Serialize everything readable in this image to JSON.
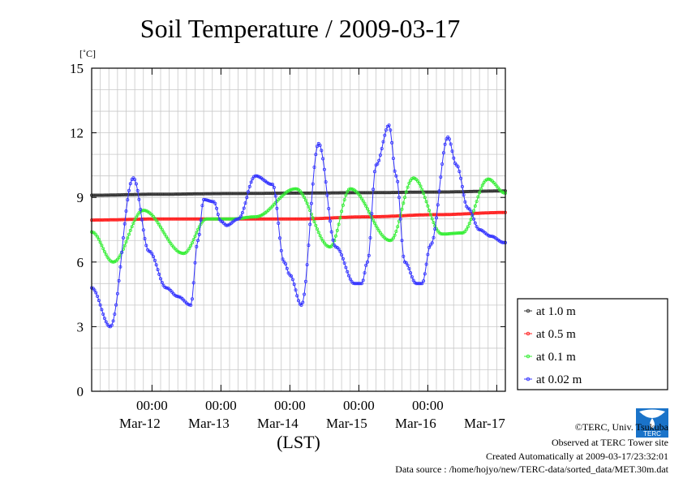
{
  "chart_data": {
    "type": "line",
    "title": "Soil Temperature / 2009-03-17",
    "ylabel": "[˚C]",
    "xlabel": "(LST)",
    "ylim": [
      0,
      15
    ],
    "yticks": [
      0,
      3,
      6,
      9,
      12,
      15
    ],
    "xlim_hours": [
      0,
      144
    ],
    "xticks": [
      {
        "hour": 21,
        "time": "00:00",
        "date": "Mar-12"
      },
      {
        "hour": 45,
        "time": "00:00",
        "date": "Mar-13"
      },
      {
        "hour": 69,
        "time": "00:00",
        "date": "Mar-14"
      },
      {
        "hour": 93,
        "time": "00:00",
        "date": "Mar-15"
      },
      {
        "hour": 117,
        "time": "00:00",
        "date": "Mar-16"
      },
      {
        "hour": 141,
        "time": "",
        "date": "Mar-17"
      }
    ],
    "grid": true,
    "legend_position": "right-bottom",
    "series": [
      {
        "name": "at 1.0 m",
        "color": "#333333",
        "x": [
          0,
          24,
          48,
          72,
          96,
          120,
          144
        ],
        "y": [
          9.1,
          9.15,
          9.18,
          9.2,
          9.22,
          9.25,
          9.3
        ]
      },
      {
        "name": "at 0.5 m",
        "color": "#ff2020",
        "x": [
          0,
          24,
          48,
          72,
          96,
          120,
          144
        ],
        "y": [
          7.95,
          8.0,
          8.0,
          8.0,
          8.1,
          8.2,
          8.3
        ]
      },
      {
        "name": "at 0.1 m",
        "color": "#33ee33",
        "x": [
          0,
          7.5,
          18,
          32,
          40,
          49,
          57,
          71,
          83,
          90,
          104,
          112,
          122,
          129,
          138,
          144
        ],
        "y": [
          7.4,
          6.0,
          8.4,
          6.4,
          8.0,
          8.0,
          8.1,
          9.4,
          6.7,
          9.4,
          7.0,
          9.9,
          7.3,
          7.35,
          9.85,
          9.2
        ]
      },
      {
        "name": "at 0.02 m",
        "color": "#3333ff",
        "x": [
          0,
          6.5,
          14.5,
          20,
          26,
          30,
          34.5,
          37,
          39,
          42.5,
          45,
          47,
          51,
          57,
          63,
          67,
          69,
          73,
          79,
          85,
          91.5,
          94,
          96,
          99,
          103.5,
          106,
          109,
          113,
          115,
          118,
          124,
          127,
          131,
          135,
          139,
          143.5
        ],
        "y": [
          4.8,
          3.0,
          9.9,
          6.5,
          4.8,
          4.4,
          4.0,
          7.0,
          8.9,
          8.8,
          7.9,
          7.7,
          8.0,
          10.0,
          9.6,
          6.0,
          5.4,
          4.0,
          11.5,
          6.7,
          5.0,
          5.0,
          6.0,
          10.5,
          12.35,
          10.0,
          6.0,
          5.0,
          5.0,
          6.8,
          11.8,
          10.5,
          8.5,
          7.5,
          7.2,
          6.9
        ]
      }
    ]
  },
  "credits": {
    "copyright": "©TERC, Univ. Tsukuba",
    "observed": "Observed at TERC Tower site",
    "created": "Created Automatically at 2009-03-17/23:32:01",
    "source": "Data source : /home/hojyo/new/TERC-data/sorted_data/MET.30m.dat",
    "logo_text": "TERC"
  }
}
